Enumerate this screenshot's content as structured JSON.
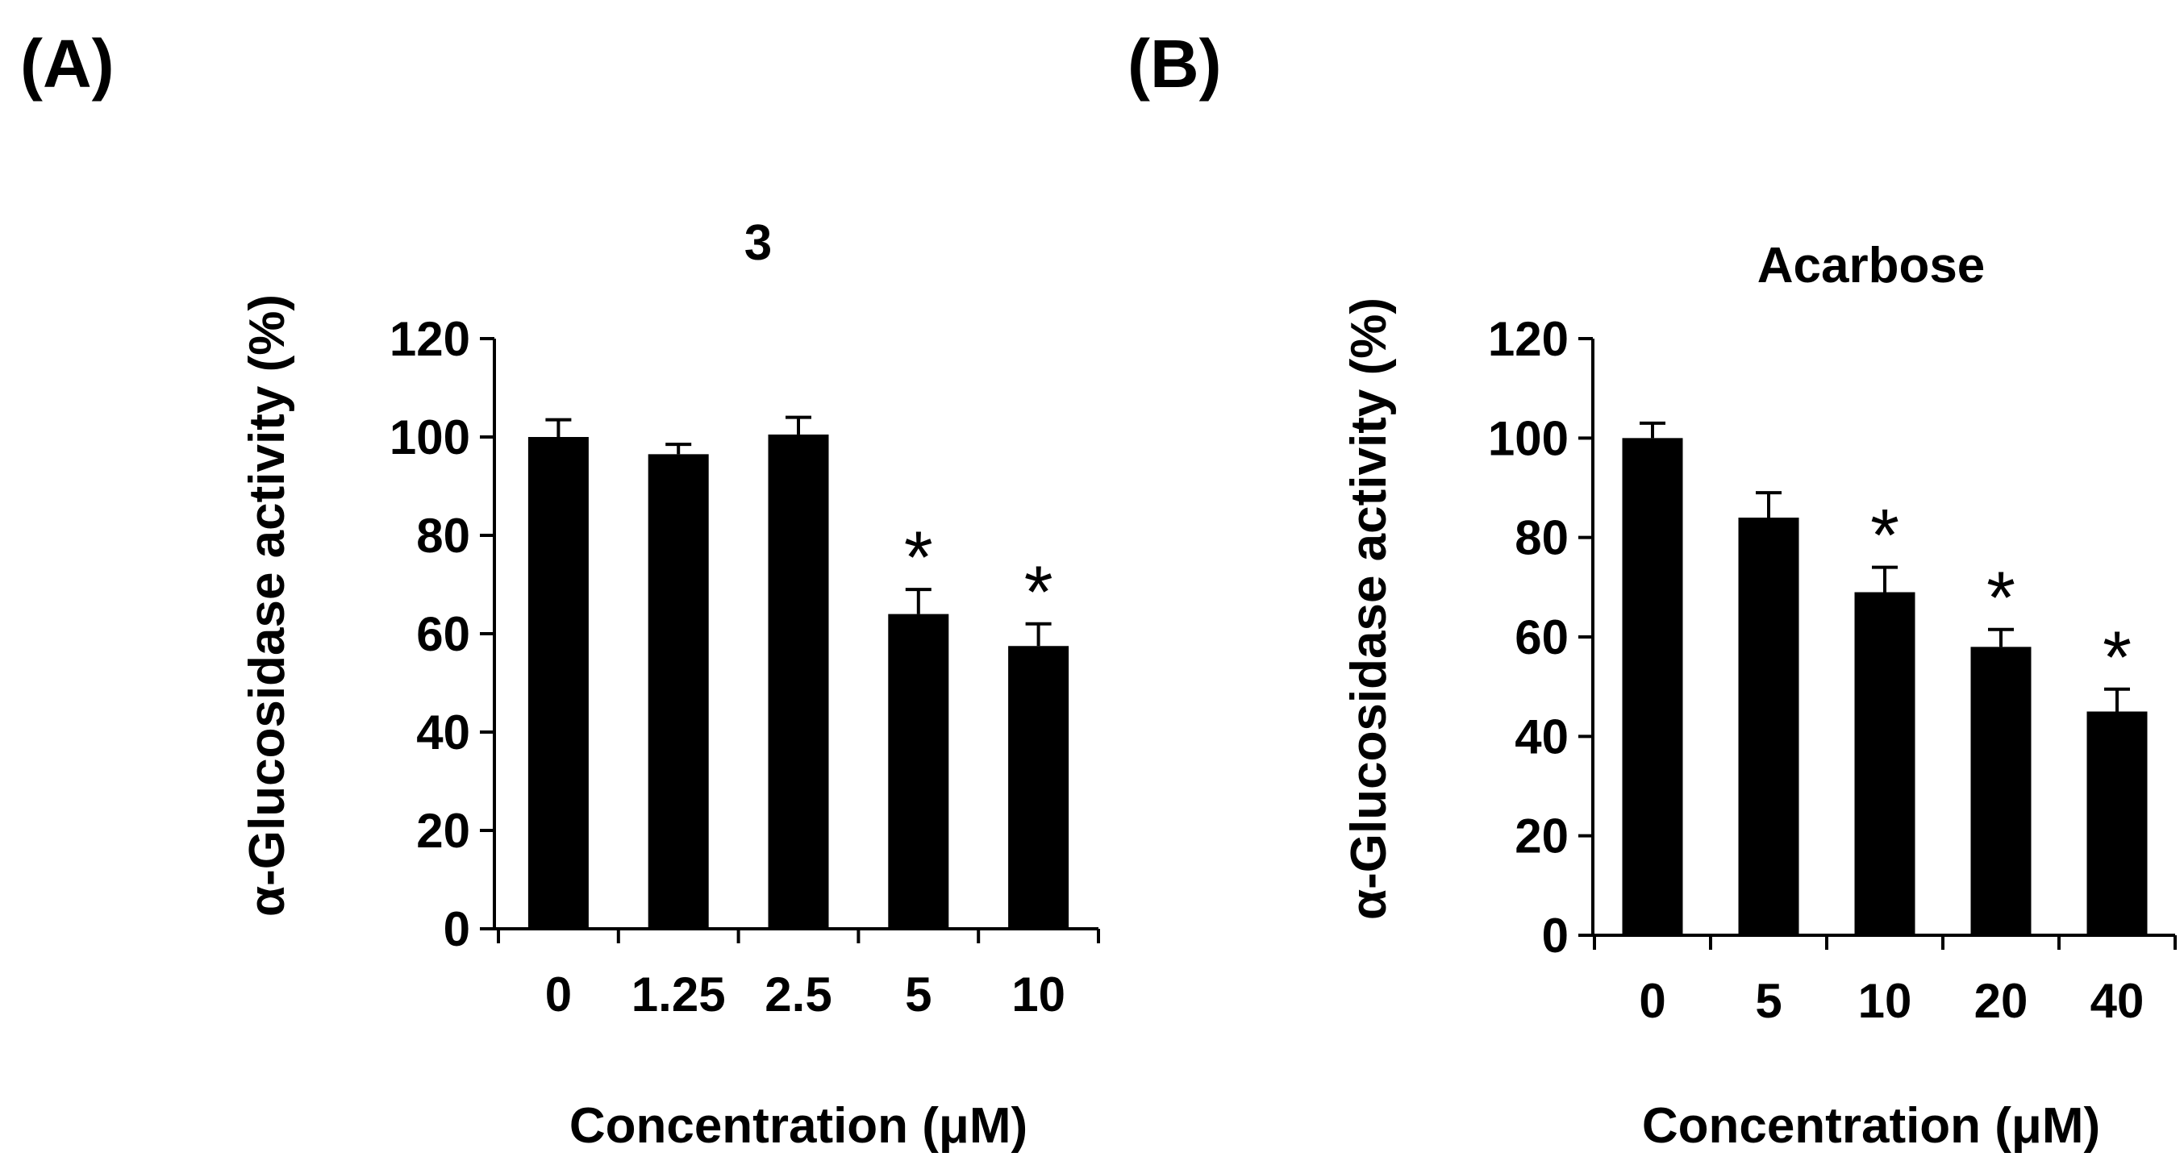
{
  "chart_data": [
    {
      "panel_label": "(A)",
      "type": "bar",
      "title": "3",
      "xlabel": "Concentration (μM)",
      "ylabel": "α-Glucosidase activity (%)",
      "categories": [
        "0",
        "1.25",
        "2.5",
        "5",
        "10"
      ],
      "values": [
        100,
        96.5,
        100.5,
        64,
        57.5
      ],
      "errors": [
        3.5,
        2,
        3.5,
        5,
        4.5
      ],
      "significance": [
        "",
        "",
        "",
        "*",
        "*"
      ],
      "ylim": [
        0,
        120
      ],
      "yticks": [
        "0",
        "20",
        "40",
        "60",
        "80",
        "100",
        "120"
      ],
      "color": "#000000"
    },
    {
      "panel_label": "(B)",
      "type": "bar",
      "title": "Acarbose",
      "xlabel": "Concentration (μM)",
      "ylabel": "α-Glucosidase activity (%)",
      "categories": [
        "0",
        "5",
        "10",
        "20",
        "40"
      ],
      "values": [
        100,
        84,
        69,
        58,
        45
      ],
      "errors": [
        3,
        5,
        5,
        3.5,
        4.5
      ],
      "significance": [
        "",
        "",
        "*",
        "*",
        "*"
      ],
      "ylim": [
        0,
        120
      ],
      "yticks": [
        "0",
        "20",
        "40",
        "60",
        "80",
        "100",
        "120"
      ],
      "color": "#000000"
    }
  ]
}
